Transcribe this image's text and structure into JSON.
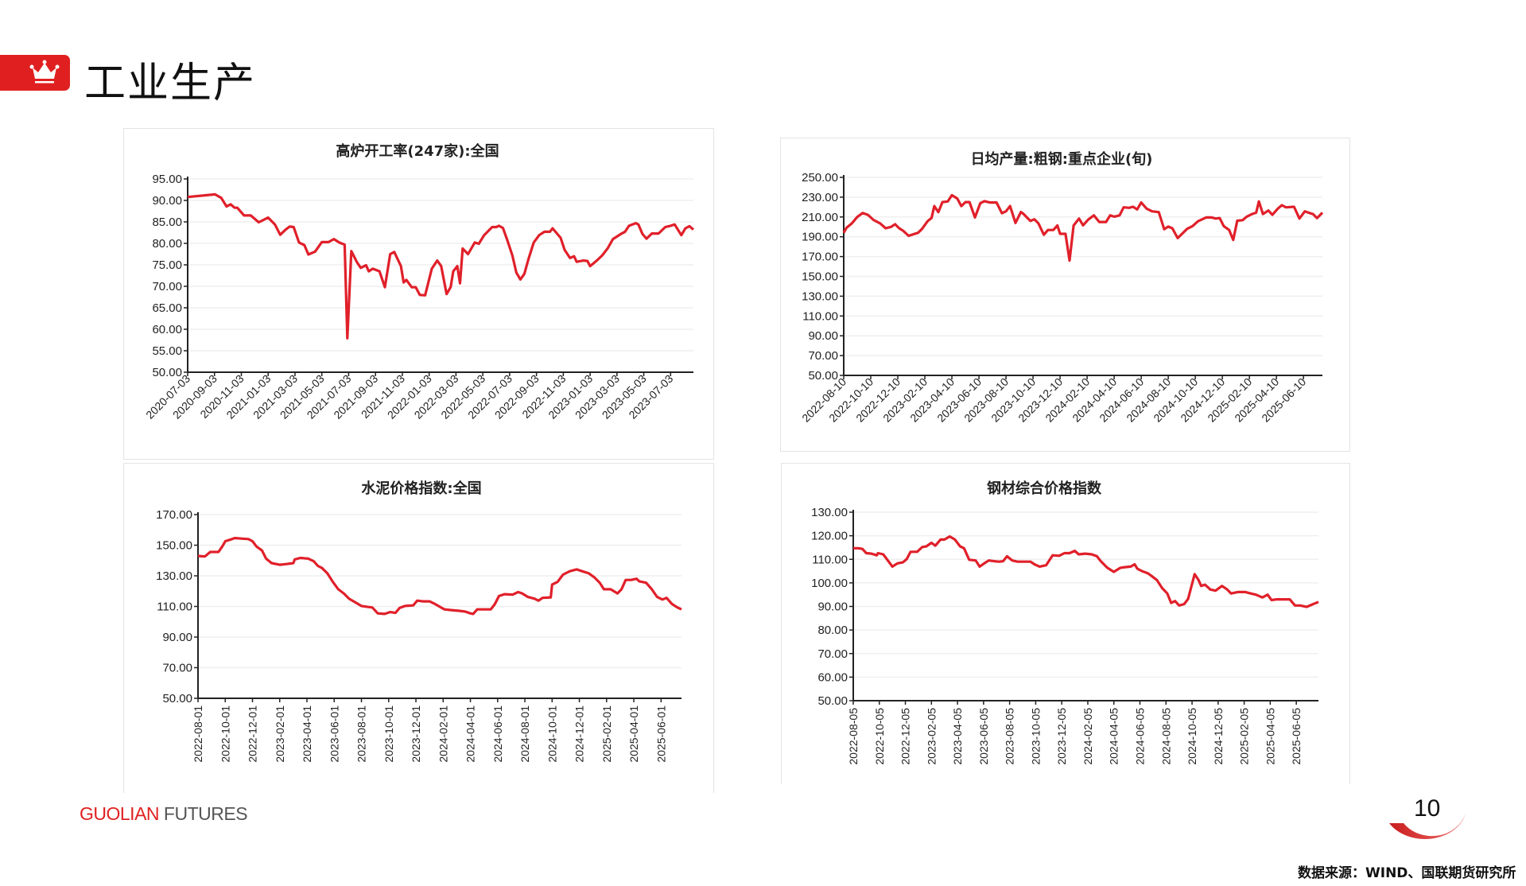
{
  "header": {
    "title": "工业生产",
    "icon": "crown-icon"
  },
  "footer": {
    "brand_part1": "GUOLIAN",
    "brand_part2": "FUTURES",
    "page_number": "10",
    "source": "数据来源：WIND、国联期货研究所"
  },
  "colors": {
    "accent": "#e02020",
    "line": "#e0202a"
  },
  "chart_data": [
    {
      "type": "line",
      "title": "高炉开工率(247家):全国",
      "x_origin": "2020-07-03",
      "x_unit": "months since x_origin",
      "x_range": [
        0,
        37.7
      ],
      "ylim": [
        50,
        95
      ],
      "y_step": 5,
      "y_ticks": [
        "50.00",
        "55.00",
        "60.00",
        "65.00",
        "70.00",
        "75.00",
        "80.00",
        "85.00",
        "90.00",
        "95.00"
      ],
      "x_ticks": [
        "2020-07-03",
        "2020-09-03",
        "2020-11-03",
        "2021-01-03",
        "2021-03-03",
        "2021-05-03",
        "2021-07-03",
        "2021-09-03",
        "2021-11-03",
        "2022-01-03",
        "2022-03-03",
        "2022-05-03",
        "2022-07-03",
        "2022-09-03",
        "2022-11-03",
        "2023-01-03",
        "2023-03-03",
        "2023-05-03",
        "2023-07-03"
      ],
      "label_rotation": 45,
      "grid": true,
      "x": [
        0,
        2.04,
        2.5,
        2.9,
        3.2,
        3.5,
        3.7,
        4.2,
        4.7,
        5.3,
        6.0,
        6.5,
        6.9,
        7.3,
        7.6,
        7.9,
        8.3,
        8.7,
        9.0,
        9.5,
        10.0,
        10.5,
        10.9,
        11.3,
        11.7,
        11.9,
        12.2,
        12.6,
        12.9,
        13.3,
        13.5,
        13.8,
        14.3,
        14.7,
        15.1,
        15.4,
        15.9,
        16.1,
        16.3,
        16.7,
        17.0,
        17.3,
        17.7,
        18.2,
        18.6,
        18.9,
        19.3,
        19.6,
        19.8,
        20.1,
        20.3,
        20.5,
        20.9,
        21.4,
        21.7,
        22.1,
        22.7,
        23.0,
        23.2,
        23.5,
        23.8,
        24.2,
        24.5,
        24.8,
        25.1,
        25.4,
        25.8,
        26.2,
        26.6,
        27.0,
        27.2,
        27.8,
        28.1,
        28.5,
        28.8,
        29.0,
        29.5,
        29.8,
        30.0,
        30.5,
        30.9,
        31.3,
        31.7,
        32.3,
        32.6,
        32.9,
        33.4,
        33.6,
        33.9,
        34.2,
        34.6,
        35.1,
        35.6,
        36.0,
        36.3,
        36.8,
        37.1,
        37.4,
        37.7
      ],
      "values": [
        90.8,
        91.4,
        90.6,
        88.6,
        89.1,
        88.3,
        88.3,
        86.5,
        86.5,
        84.9,
        86.0,
        84.4,
        82.0,
        83.2,
        83.9,
        83.8,
        80.2,
        79.6,
        77.4,
        78.1,
        80.3,
        80.3,
        81.0,
        80.2,
        79.7,
        57.9,
        78.2,
        75.7,
        74.3,
        74.9,
        73.5,
        74.1,
        73.5,
        69.8,
        77.5,
        78.0,
        74.7,
        70.9,
        71.5,
        69.8,
        69.8,
        68.0,
        67.9,
        74.1,
        76.0,
        74.7,
        68.2,
        69.8,
        73.5,
        74.7,
        70.7,
        78.8,
        77.5,
        80.2,
        79.9,
        81.9,
        83.8,
        83.8,
        84.1,
        83.6,
        81.0,
        77.2,
        73.2,
        71.6,
        72.9,
        76.3,
        80.2,
        81.9,
        82.7,
        82.7,
        83.5,
        81.3,
        78.5,
        76.6,
        77.0,
        75.7,
        76.0,
        75.9,
        74.7,
        76.0,
        77.2,
        78.8,
        81.0,
        82.2,
        82.7,
        84.1,
        84.7,
        84.4,
        82.2,
        81.1,
        82.3,
        82.3,
        83.8,
        84.1,
        84.4,
        81.9,
        83.5,
        84.0,
        83.2
      ]
    },
    {
      "type": "line",
      "title": "日均产量:粗钢:重点企业(旬)",
      "x_origin": "2022-08-10",
      "x_unit": "months since x_origin",
      "x_range": [
        0,
        35.4
      ],
      "ylim": [
        50,
        250
      ],
      "y_step": 20,
      "y_ticks": [
        "50.00",
        "70.00",
        "90.00",
        "110.00",
        "130.00",
        "150.00",
        "170.00",
        "190.00",
        "210.00",
        "230.00",
        "250.00"
      ],
      "x_ticks": [
        "2022-08-10",
        "2022-10-10",
        "2022-12-10",
        "2023-02-10",
        "2023-04-10",
        "2023-06-10",
        "2023-08-10",
        "2023-10-10",
        "2023-12-10",
        "2024-02-10",
        "2024-04-10",
        "2024-06-10",
        "2024-08-10",
        "2024-10-10",
        "2024-12-10",
        "2025-02-10",
        "2025-04-10",
        "2025-06-10"
      ],
      "label_rotation": 45,
      "grid": true,
      "x": [
        0,
        0.2,
        0.6,
        1.0,
        1.4,
        1.8,
        2.2,
        2.7,
        3.1,
        3.5,
        3.8,
        4.1,
        4.4,
        4.8,
        5.2,
        5.5,
        5.8,
        6.2,
        6.5,
        6.7,
        7.0,
        7.3,
        7.7,
        8.0,
        8.4,
        8.7,
        9.0,
        9.3,
        9.7,
        10.1,
        10.4,
        10.8,
        11.3,
        11.7,
        12.0,
        12.3,
        12.7,
        13.1,
        13.3,
        13.8,
        14.1,
        14.4,
        14.8,
        15.1,
        15.5,
        15.8,
        16.0,
        16.4,
        16.7,
        17.0,
        17.4,
        17.7,
        18.1,
        18.5,
        18.9,
        19.4,
        19.7,
        20.0,
        20.4,
        20.7,
        21.1,
        21.4,
        21.7,
        22.0,
        22.4,
        22.8,
        23.3,
        23.7,
        24.0,
        24.3,
        24.7,
        25.1,
        25.4,
        25.8,
        26.2,
        26.8,
        27.2,
        27.5,
        27.8,
        28.1,
        28.5,
        28.8,
        29.1,
        29.5,
        29.8,
        30.2,
        30.5,
        30.7,
        31.0,
        31.4,
        31.7,
        32.1,
        32.4,
        32.7,
        33.3,
        33.7,
        34.1,
        34.5,
        34.7,
        35.0,
        35.4
      ],
      "values": [
        194,
        199,
        203.5,
        210,
        214,
        212,
        207,
        203.5,
        198.6,
        200,
        202.7,
        198.6,
        196,
        191,
        192.7,
        194,
        198,
        205.7,
        209,
        221,
        214.9,
        225,
        225.7,
        232,
        228.6,
        221,
        225,
        225,
        209.5,
        224,
        226,
        224.6,
        224.6,
        213.8,
        215.7,
        221,
        204,
        215,
        213,
        206,
        207.6,
        203.5,
        192,
        196.8,
        196.8,
        201.4,
        193,
        193,
        166,
        201.4,
        208.4,
        201.6,
        207.6,
        211.6,
        204.9,
        204.9,
        211.6,
        210.3,
        211.6,
        219.7,
        219.2,
        220.3,
        217.6,
        224.6,
        218.4,
        215.7,
        214.9,
        197.6,
        200.3,
        198.6,
        188.6,
        194,
        198,
        200.8,
        205.7,
        209.5,
        209.5,
        208.4,
        208.9,
        200.8,
        196.8,
        186.8,
        206.2,
        206.8,
        210.3,
        213,
        214.3,
        225.7,
        213,
        216.5,
        212.2,
        218.4,
        221.9,
        219.7,
        220.3,
        208.4,
        215.7,
        213.8,
        213,
        208.9,
        214.3
      ]
    },
    {
      "type": "line",
      "title": "水泥价格指数:全国",
      "x_origin": "2022-08-01",
      "x_unit": "months since x_origin",
      "x_range": [
        0,
        35.5
      ],
      "ylim": [
        50,
        170
      ],
      "y_step": 20,
      "y_ticks": [
        "50.00",
        "70.00",
        "90.00",
        "110.00",
        "130.00",
        "150.00",
        "170.00"
      ],
      "x_ticks": [
        "2022-08-01",
        "2022-10-01",
        "2022-12-01",
        "2023-02-01",
        "2023-04-01",
        "2023-06-01",
        "2023-08-01",
        "2023-10-01",
        "2023-12-01",
        "2024-02-01",
        "2024-04-01",
        "2024-06-01",
        "2024-08-01",
        "2024-10-01",
        "2024-12-01",
        "2025-02-01",
        "2025-04-01",
        "2025-06-01"
      ],
      "label_rotation": 90,
      "grid": true,
      "x": [
        0,
        0.5,
        0.9,
        1.5,
        1.8,
        2.0,
        2.5,
        2.7,
        3.2,
        3.7,
        4.0,
        4.3,
        4.7,
        5.0,
        5.4,
        6.0,
        6.5,
        7.0,
        7.1,
        7.5,
        8.1,
        8.5,
        8.8,
        9.1,
        9.5,
        9.9,
        10.3,
        10.7,
        11.1,
        11.6,
        12.0,
        12.4,
        12.8,
        13.2,
        13.7,
        14.1,
        14.5,
        14.8,
        15.2,
        15.8,
        16.1,
        16.5,
        17.0,
        17.4,
        17.9,
        18.1,
        18.6,
        19.1,
        19.6,
        20.0,
        20.2,
        20.5,
        20.9,
        21.5,
        21.8,
        22.1,
        22.5,
        23.1,
        23.5,
        23.8,
        24.2,
        24.7,
        25.0,
        25.3,
        25.9,
        26.0,
        26.4,
        26.8,
        27.3,
        27.8,
        28.2,
        28.7,
        29.1,
        29.5,
        29.8,
        30.3,
        30.8,
        31.1,
        31.4,
        31.8,
        32.2,
        32.4,
        32.9,
        33.3,
        33.7,
        34.1,
        34.4,
        34.8,
        35.2,
        35.5
      ],
      "values": [
        143,
        142.6,
        145.6,
        145.6,
        149.4,
        152.6,
        154,
        154.7,
        154.3,
        154,
        152.6,
        149.1,
        146.5,
        141.2,
        138.3,
        137.2,
        137.7,
        138.3,
        140.7,
        141.7,
        141.2,
        139.5,
        136.5,
        135.1,
        131.6,
        126,
        121.2,
        118.5,
        115,
        112.4,
        110.3,
        109.8,
        109.3,
        105.5,
        105.1,
        106.3,
        105.8,
        109,
        110.3,
        110.7,
        113.8,
        113.3,
        113.3,
        111.6,
        109,
        108.1,
        107.6,
        107.2,
        106.7,
        105.5,
        105.1,
        108.1,
        108.1,
        108.1,
        111.6,
        116.8,
        118,
        117.7,
        119.4,
        118.5,
        116.3,
        115.1,
        113.8,
        115.6,
        115.9,
        124.3,
        126,
        130.8,
        133,
        134.2,
        133,
        131.6,
        129,
        125.5,
        121.2,
        121.2,
        118.5,
        121.2,
        127.3,
        127.3,
        128.1,
        126.4,
        125.5,
        121.5,
        116.3,
        114.5,
        115.6,
        111.6,
        109.3,
        108.1
      ]
    },
    {
      "type": "line",
      "title": "钢材综合价格指数",
      "x_origin": "2022-08-05",
      "x_unit": "months since x_origin",
      "x_range": [
        0,
        35.7
      ],
      "ylim": [
        50,
        130
      ],
      "y_step": 10,
      "y_ticks": [
        "50.00",
        "60.00",
        "70.00",
        "80.00",
        "90.00",
        "100.00",
        "110.00",
        "120.00",
        "130.00"
      ],
      "x_ticks": [
        "2022-08-05",
        "2022-10-05",
        "2022-12-05",
        "2023-02-05",
        "2023-04-05",
        "2023-06-05",
        "2023-08-05",
        "2023-10-05",
        "2023-12-05",
        "2024-02-05",
        "2024-04-05",
        "2024-06-05",
        "2024-08-05",
        "2024-10-05",
        "2024-12-05",
        "2025-02-05",
        "2025-04-05",
        "2025-06-05"
      ],
      "label_rotation": 90,
      "grid": true,
      "x": [
        0,
        0.4,
        0.7,
        1.0,
        1.4,
        1.8,
        1.9,
        2.3,
        2.7,
        3.0,
        3.4,
        3.8,
        4.1,
        4.4,
        4.9,
        5.3,
        5.6,
        6.0,
        6.3,
        6.7,
        7.0,
        7.4,
        7.8,
        8.2,
        8.5,
        8.9,
        9.4,
        9.7,
        10.0,
        10.4,
        10.8,
        11.2,
        11.5,
        11.8,
        12.2,
        12.6,
        13.2,
        13.6,
        13.9,
        14.3,
        14.8,
        15.3,
        15.8,
        16.2,
        16.6,
        17.0,
        17.3,
        17.8,
        18.3,
        18.7,
        19.0,
        19.5,
        20.0,
        20.5,
        20.9,
        21.3,
        21.6,
        21.8,
        22.2,
        22.6,
        22.9,
        23.3,
        23.7,
        24.1,
        24.4,
        24.7,
        25.0,
        25.4,
        25.7,
        26.2,
        26.5,
        26.7,
        27.0,
        27.4,
        27.8,
        28.3,
        28.7,
        29.0,
        29.5,
        30.1,
        30.5,
        30.9,
        31.4,
        31.8,
        32.1,
        32.5,
        33.1,
        33.5,
        33.9,
        34.3,
        34.8,
        35.3,
        35.7
      ],
      "values": [
        114.7,
        114.7,
        114.4,
        112.6,
        112.4,
        111.7,
        112.6,
        112.1,
        109.2,
        106.9,
        108.3,
        108.7,
        110.1,
        113.2,
        113.2,
        115.2,
        115.5,
        117,
        115.8,
        118.4,
        118.4,
        119.7,
        118.4,
        115.5,
        114.7,
        109.8,
        109.5,
        106.9,
        108.1,
        109.5,
        109.2,
        109,
        109.2,
        111.3,
        109.5,
        109,
        109,
        109,
        107.9,
        106.9,
        107.5,
        111.7,
        111.5,
        112.6,
        112.6,
        113.6,
        112.1,
        112.4,
        112.1,
        111.3,
        109.2,
        106.4,
        104.7,
        106.4,
        106.7,
        106.9,
        107.9,
        106,
        104.9,
        104.1,
        102.9,
        101.2,
        97.8,
        95.5,
        91.5,
        92.3,
        90.4,
        91,
        93.2,
        103.7,
        101.2,
        98.7,
        99.2,
        97.2,
        96.7,
        98.7,
        97.2,
        95.5,
        96.1,
        96.1,
        95.5,
        95,
        93.8,
        95,
        92.7,
        93,
        93,
        93,
        90.4,
        90.4,
        89.8,
        91,
        91.9
      ]
    }
  ]
}
